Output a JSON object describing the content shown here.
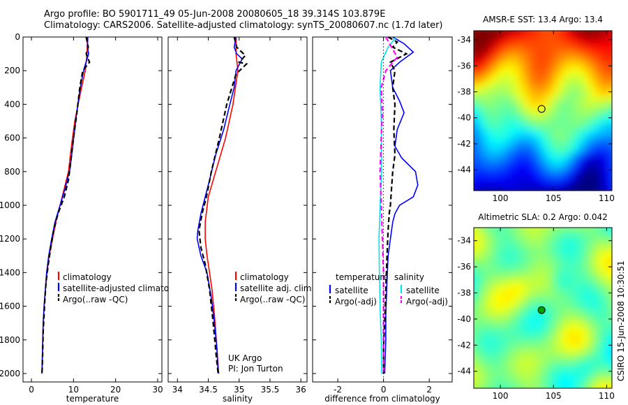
{
  "header": {
    "line1": "Argo profile: BO 5901711_49 05-Jun-2008 20080605_18 39.314S 103.879E",
    "line2": "Climatology: CARS2006. Satellite-adjusted climatology: synTS_20080607.nc (1.7d later)"
  },
  "colors": {
    "climatology": "#ff0000",
    "satellite": "#0000ff",
    "argo": "#000000",
    "sal_satellite": "#00e5ee",
    "sal_argo": "#ff00ff"
  },
  "chart_data": [
    {
      "type": "line",
      "xlabel": "temperature",
      "ylabel": "",
      "xlim": [
        -2,
        31
      ],
      "ylim": [
        0,
        2050
      ],
      "y_reversed": true,
      "xticks": [
        0,
        10,
        20,
        30
      ],
      "yticks": [
        0,
        200,
        400,
        600,
        800,
        1000,
        1200,
        1400,
        1600,
        1800,
        2000
      ],
      "legend_position": "lower-middle",
      "series": [
        {
          "name": "climatology",
          "color": "#ff0000",
          "dash": "solid",
          "points": [
            [
              13.3,
              0
            ],
            [
              13.2,
              100
            ],
            [
              12.8,
              200
            ],
            [
              11.5,
              350
            ],
            [
              10.3,
              500
            ],
            [
              9.5,
              650
            ],
            [
              8.8,
              800
            ],
            [
              7.8,
              900
            ],
            [
              6.8,
              1000
            ],
            [
              5.8,
              1100
            ],
            [
              5.0,
              1200
            ],
            [
              4.2,
              1300
            ],
            [
              3.7,
              1400
            ],
            [
              3.3,
              1500
            ],
            [
              3.0,
              1600
            ],
            [
              2.8,
              1700
            ],
            [
              2.7,
              1800
            ],
            [
              2.6,
              1900
            ],
            [
              2.5,
              2000
            ]
          ]
        },
        {
          "name": "satellite-adjusted climatology",
          "color": "#0000ff",
          "dash": "solid",
          "points": [
            [
              13.4,
              0
            ],
            [
              13.3,
              60
            ],
            [
              13.6,
              100
            ],
            [
              12.6,
              180
            ],
            [
              12.0,
              250
            ],
            [
              11.3,
              350
            ],
            [
              10.5,
              500
            ],
            [
              9.8,
              650
            ],
            [
              9.2,
              780
            ],
            [
              8.0,
              900
            ],
            [
              6.8,
              1000
            ],
            [
              5.6,
              1100
            ],
            [
              4.8,
              1200
            ],
            [
              4.1,
              1300
            ],
            [
              3.6,
              1400
            ],
            [
              3.3,
              1500
            ],
            [
              3.0,
              1600
            ],
            [
              2.8,
              1700
            ],
            [
              2.7,
              1800
            ],
            [
              2.6,
              1900
            ],
            [
              2.5,
              2000
            ]
          ]
        },
        {
          "name": "Argo(..raw -QC)",
          "color": "#000000",
          "dash": "dashed",
          "points": [
            [
              13.0,
              0
            ],
            [
              13.5,
              60
            ],
            [
              13.0,
              100
            ],
            [
              13.8,
              150
            ],
            [
              12.2,
              200
            ],
            [
              11.5,
              300
            ],
            [
              10.8,
              450
            ],
            [
              10.0,
              600
            ],
            [
              9.3,
              750
            ],
            [
              8.8,
              850
            ],
            [
              7.8,
              950
            ],
            [
              6.3,
              1050
            ],
            [
              5.3,
              1150
            ],
            [
              4.6,
              1250
            ],
            [
              4.0,
              1350
            ],
            [
              3.5,
              1450
            ],
            [
              3.2,
              1550
            ],
            [
              3.0,
              1650
            ],
            [
              2.8,
              1750
            ],
            [
              2.7,
              1850
            ],
            [
              2.6,
              1950
            ],
            [
              2.5,
              2000
            ]
          ]
        }
      ]
    },
    {
      "type": "line",
      "xlabel": "salinity",
      "ylabel": "",
      "xlim": [
        33.85,
        36.1
      ],
      "ylim": [
        0,
        2050
      ],
      "y_reversed": true,
      "xticks": [
        34,
        34.5,
        35,
        35.5,
        36
      ],
      "legend_position": "lower-middle",
      "annotation": [
        "UK Argo",
        "PI: Jon Turton"
      ],
      "series": [
        {
          "name": "climatology",
          "color": "#ff0000",
          "dash": "solid",
          "points": [
            [
              34.95,
              0
            ],
            [
              34.95,
              100
            ],
            [
              34.98,
              200
            ],
            [
              34.9,
              400
            ],
            [
              34.78,
              600
            ],
            [
              34.62,
              800
            ],
            [
              34.5,
              950
            ],
            [
              34.45,
              1100
            ],
            [
              34.45,
              1200
            ],
            [
              34.48,
              1300
            ],
            [
              34.52,
              1400
            ],
            [
              34.56,
              1500
            ],
            [
              34.6,
              1650
            ],
            [
              34.63,
              1800
            ],
            [
              34.66,
              1950
            ],
            [
              34.67,
              2000
            ]
          ]
        },
        {
          "name": "satellite adj. clim.",
          "color": "#0000ff",
          "dash": "solid",
          "points": [
            [
              34.95,
              0
            ],
            [
              34.92,
              60
            ],
            [
              34.96,
              100
            ],
            [
              35.05,
              130
            ],
            [
              34.95,
              200
            ],
            [
              34.92,
              300
            ],
            [
              34.85,
              400
            ],
            [
              34.75,
              550
            ],
            [
              34.62,
              700
            ],
            [
              34.52,
              850
            ],
            [
              34.45,
              950
            ],
            [
              34.38,
              1050
            ],
            [
              34.33,
              1150
            ],
            [
              34.32,
              1200
            ],
            [
              34.38,
              1300
            ],
            [
              34.48,
              1400
            ],
            [
              34.55,
              1550
            ],
            [
              34.6,
              1700
            ],
            [
              34.64,
              1850
            ],
            [
              34.66,
              2000
            ]
          ]
        },
        {
          "name": "Argo(..raw -QC)",
          "color": "#000000",
          "dash": "dashed",
          "points": [
            [
              34.92,
              0
            ],
            [
              34.96,
              60
            ],
            [
              35.1,
              110
            ],
            [
              35.0,
              150
            ],
            [
              35.12,
              160
            ],
            [
              34.95,
              220
            ],
            [
              34.8,
              400
            ],
            [
              34.68,
              600
            ],
            [
              34.55,
              800
            ],
            [
              34.47,
              950
            ],
            [
              34.4,
              1050
            ],
            [
              34.35,
              1150
            ],
            [
              34.38,
              1250
            ],
            [
              34.45,
              1350
            ],
            [
              34.52,
              1500
            ],
            [
              34.58,
              1700
            ],
            [
              34.63,
              1900
            ],
            [
              34.66,
              2000
            ]
          ]
        }
      ]
    },
    {
      "type": "line",
      "xlabel": "difference from climatology",
      "ylabel": "",
      "xlim": [
        -3.1,
        3.0
      ],
      "ylim": [
        0,
        2050
      ],
      "y_reversed": true,
      "xticks": [
        -2,
        0,
        2
      ],
      "legend_position": "lower-middle",
      "legend_groups": [
        {
          "title": "temperature",
          "entries": [
            "satellite",
            "Argo(-adj)"
          ]
        },
        {
          "title": "salinity",
          "entries": [
            "satellite",
            "Argo(-adj)"
          ]
        }
      ],
      "series": [
        {
          "name": "temperature satellite",
          "color": "#0000ff",
          "dash": "solid",
          "points": [
            [
              0.4,
              0
            ],
            [
              0.9,
              40
            ],
            [
              1.3,
              90
            ],
            [
              0.7,
              150
            ],
            [
              0.3,
              200
            ],
            [
              0.4,
              300
            ],
            [
              0.7,
              380
            ],
            [
              0.9,
              450
            ],
            [
              0.6,
              550
            ],
            [
              0.5,
              650
            ],
            [
              0.8,
              720
            ],
            [
              1.4,
              800
            ],
            [
              1.5,
              880
            ],
            [
              1.3,
              950
            ],
            [
              0.7,
              1000
            ],
            [
              0.5,
              1050
            ],
            [
              0.4,
              1100
            ],
            [
              0.3,
              1200
            ],
            [
              0.2,
              1300
            ],
            [
              0.15,
              1450
            ],
            [
              0.1,
              1650
            ],
            [
              0.1,
              1800
            ],
            [
              0.05,
              2000
            ]
          ]
        },
        {
          "name": "temperature Argo(-adj)",
          "color": "#000000",
          "dash": "dashed",
          "points": [
            [
              0.2,
              0
            ],
            [
              0.6,
              30
            ],
            [
              0.4,
              60
            ],
            [
              1.0,
              100
            ],
            [
              0.3,
              150
            ],
            [
              0.5,
              200
            ],
            [
              0.4,
              300
            ],
            [
              0.5,
              400
            ],
            [
              0.45,
              550
            ],
            [
              0.5,
              700
            ],
            [
              0.4,
              800
            ],
            [
              0.35,
              900
            ],
            [
              0.3,
              1000
            ],
            [
              0.25,
              1050
            ],
            [
              0.2,
              1150
            ],
            [
              0.15,
              1300
            ],
            [
              0.1,
              1500
            ],
            [
              0.05,
              1700
            ],
            [
              0.0,
              1850
            ],
            [
              0.0,
              2000
            ]
          ]
        },
        {
          "name": "salinity satellite",
          "color": "#00e5ee",
          "dash": "solid",
          "points": [
            [
              0.55,
              0
            ],
            [
              0.2,
              60
            ],
            [
              -0.1,
              150
            ],
            [
              -0.15,
              300
            ],
            [
              -0.1,
              500
            ],
            [
              -0.08,
              800
            ],
            [
              -0.15,
              1000
            ],
            [
              -0.2,
              1200
            ],
            [
              -0.18,
              1400
            ],
            [
              -0.15,
              1600
            ],
            [
              -0.1,
              1800
            ],
            [
              -0.08,
              2000
            ]
          ]
        },
        {
          "name": "salinity Argo(-adj)",
          "color": "#ff00ff",
          "dash": "dashed",
          "points": [
            [
              0.1,
              0
            ],
            [
              0.6,
              120
            ],
            [
              0.1,
              200
            ],
            [
              -0.1,
              300
            ],
            [
              -0.05,
              450
            ],
            [
              -0.1,
              600
            ],
            [
              -0.15,
              800
            ],
            [
              -0.1,
              1000
            ],
            [
              -0.05,
              1200
            ],
            [
              0.0,
              1400
            ],
            [
              0.0,
              1600
            ],
            [
              0.0,
              1800
            ],
            [
              0.0,
              2000
            ]
          ]
        },
        {
          "name": "zero line",
          "color": "#000000",
          "dash": "dotted",
          "points": [
            [
              0,
              0
            ],
            [
              0,
              2050
            ]
          ]
        }
      ]
    }
  ],
  "maps": [
    {
      "title": "AMSR-E SST: 13.4 Argo: 13.4",
      "xlim": [
        97.5,
        110.5
      ],
      "ylim": [
        -45.6,
        -33.3
      ],
      "xticks": [
        100,
        105,
        110
      ],
      "yticks": [
        -34,
        -36,
        -38,
        -40,
        -42,
        -44
      ],
      "marker": {
        "lon": 103.879,
        "lat": -39.314,
        "fill": "none"
      },
      "colormap": "jet-sst"
    },
    {
      "title": "Altimetric SLA: 0.2 Argo: 0.042",
      "xlim": [
        97.5,
        110.5
      ],
      "ylim": [
        -45.3,
        -33.0
      ],
      "xticks": [
        100,
        105,
        110
      ],
      "yticks": [
        -34,
        -36,
        -38,
        -40,
        -42,
        -44
      ],
      "marker": {
        "lon": 103.879,
        "lat": -39.314,
        "fill": "#00a000"
      },
      "colormap": "jet-sla"
    }
  ],
  "side_label": "CSIRO 15-Jun-2008 10:30:51"
}
